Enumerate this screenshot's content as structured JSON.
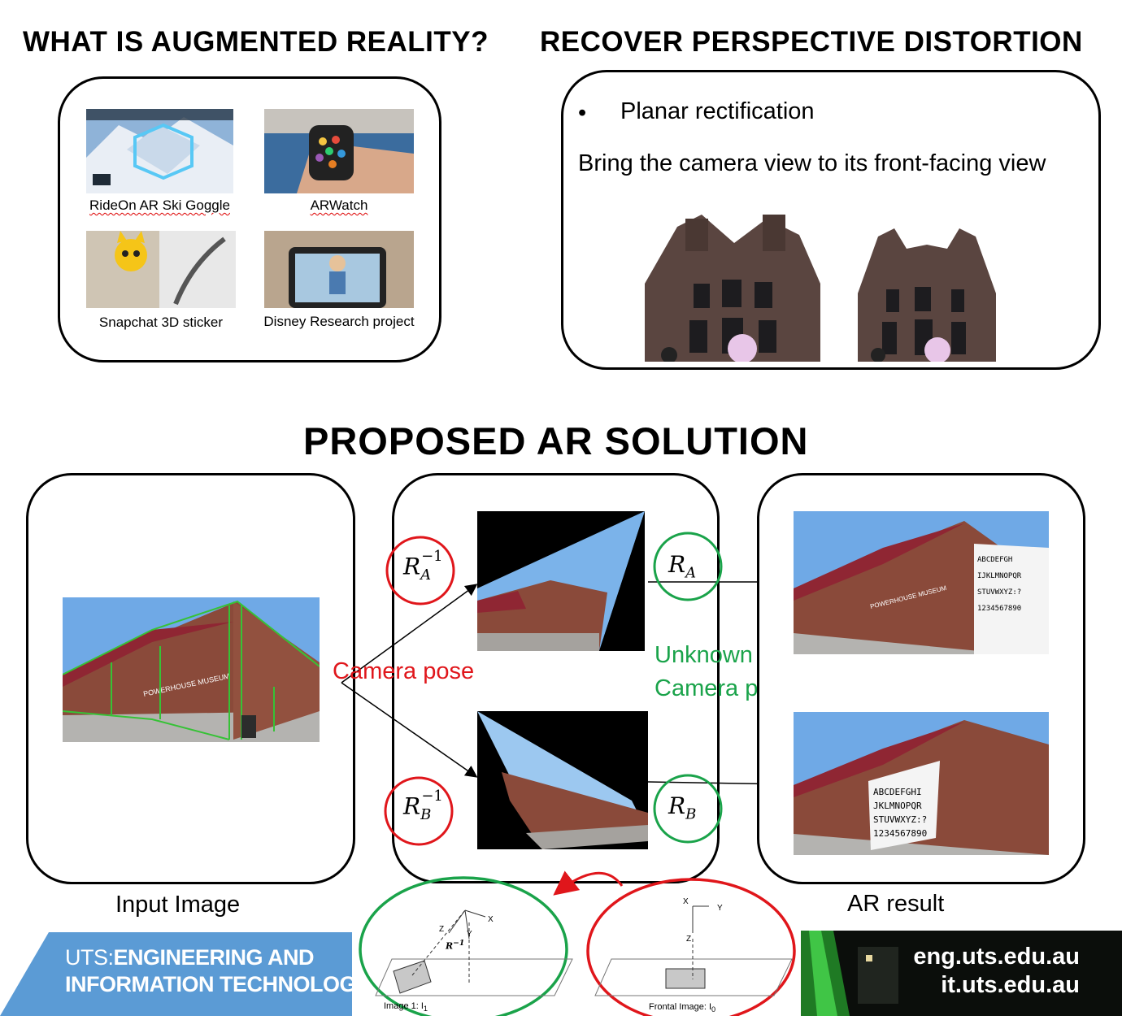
{
  "titles": {
    "left": "WHAT IS AUGMENTED REALITY?",
    "right": "RECOVER PERSPECTIVE DISTORTION",
    "middle": "PROPOSED AR SOLUTION"
  },
  "ar_examples": [
    {
      "caption": "RideOn AR Ski Goggle"
    },
    {
      "caption": "ARWatch"
    },
    {
      "caption": "Snapchat 3D sticker"
    },
    {
      "caption": "Disney Research project"
    }
  ],
  "perspective": {
    "bullet": "•",
    "bullet_text": "Planar rectification",
    "description": "Bring the camera view to its front-facing view"
  },
  "solution": {
    "input_caption": "Input Image",
    "result_caption": "AR result",
    "camera_pose_label": "Camera pose",
    "unknown_label_line1": "Unknown",
    "unknown_label_line2": "Camera pose",
    "museum_sign": "POWERHOUSE MUSEUM",
    "sign_letters_a": "ABCDEFGH\nIJKLMNOPQR\nSTUVWXYZ:?\n1234567890",
    "sign_letters_b": "ABCDEFGHI\nJKLMNOPQR\nSTUVWXYZ:?\n1234567890",
    "math": {
      "ra_inv": "R",
      "ra_inv_sub": "A",
      "ra_inv_sup": "−1",
      "rb_inv": "R",
      "rb_inv_sub": "B",
      "rb_inv_sup": "−1",
      "ra": "R",
      "ra_sub": "A",
      "rb": "R",
      "rb_sub": "B"
    }
  },
  "diagrams": {
    "left_axes": [
      "X",
      "Y",
      "Z"
    ],
    "left_rotation": "R",
    "left_rotation_sup": "−1",
    "left_caption": "Image 1: I",
    "left_caption_sub": "1",
    "right_axes": [
      "X",
      "Y",
      "Z"
    ],
    "right_caption": "Frontal Image: I",
    "right_caption_sub": "0"
  },
  "footer": {
    "brand_prefix": "UTS:",
    "brand_line1": "ENGINEERING AND",
    "brand_line2": "INFORMATION TECHNOLOG",
    "link1": "eng.uts.edu.au",
    "link2": "it.uts.edu.au"
  },
  "colors": {
    "red_circle": "#e0161b",
    "green_circle": "#1aa34a",
    "uts_blue": "#5b9bd5",
    "sky": "#6fa9e6",
    "brick": "#8a4a3a"
  }
}
